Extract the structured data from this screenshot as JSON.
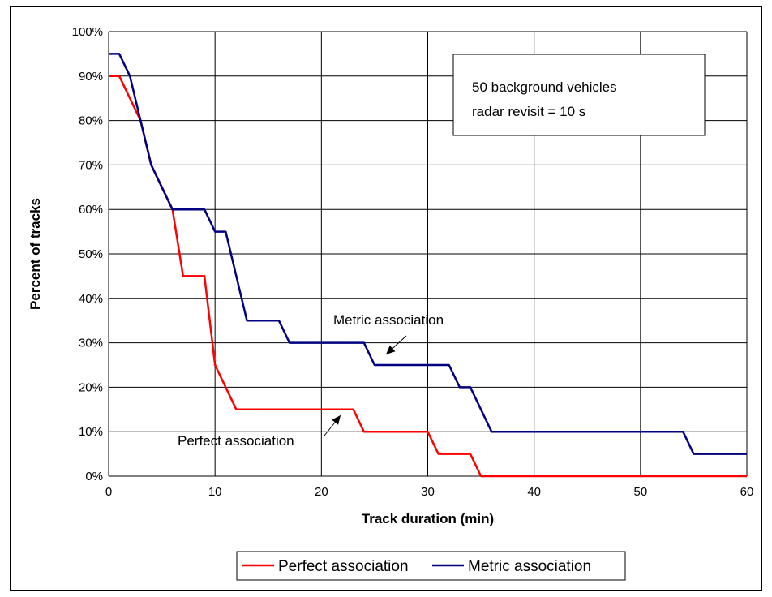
{
  "chart_data": {
    "type": "line",
    "title": "",
    "xlabel": "Track duration (min)",
    "ylabel": "Percent of tracks",
    "xlim": [
      0,
      60
    ],
    "ylim": [
      0,
      100
    ],
    "xticks": [
      0,
      10,
      20,
      30,
      40,
      50,
      60
    ],
    "yticks": [
      0,
      10,
      20,
      30,
      40,
      50,
      60,
      70,
      80,
      90,
      100
    ],
    "ytick_format": "percent",
    "grid": true,
    "legend_position": "bottom",
    "annotation_box": [
      "50 background vehicles",
      "radar revisit = 10 s"
    ],
    "arrow_labels": [
      "Metric association",
      "Perfect association"
    ],
    "series": [
      {
        "name": "Perfect association",
        "color": "#ff0000",
        "points": [
          [
            0,
            90
          ],
          [
            1,
            90
          ],
          [
            2,
            85
          ],
          [
            3,
            80
          ],
          [
            4,
            70
          ],
          [
            5,
            65
          ],
          [
            6,
            60
          ],
          [
            7,
            45
          ],
          [
            8,
            45
          ],
          [
            9,
            45
          ],
          [
            10,
            25
          ],
          [
            11,
            20
          ],
          [
            12,
            15
          ],
          [
            13,
            15
          ],
          [
            14,
            15
          ],
          [
            15,
            15
          ],
          [
            16,
            15
          ],
          [
            17,
            15
          ],
          [
            18,
            15
          ],
          [
            19,
            15
          ],
          [
            20,
            15
          ],
          [
            21,
            15
          ],
          [
            22,
            15
          ],
          [
            23,
            15
          ],
          [
            24,
            10
          ],
          [
            25,
            10
          ],
          [
            26,
            10
          ],
          [
            27,
            10
          ],
          [
            28,
            10
          ],
          [
            29,
            10
          ],
          [
            30,
            10
          ],
          [
            31,
            5
          ],
          [
            32,
            5
          ],
          [
            33,
            5
          ],
          [
            34,
            5
          ],
          [
            35,
            0
          ],
          [
            36,
            0
          ],
          [
            40,
            0
          ],
          [
            45,
            0
          ],
          [
            50,
            0
          ],
          [
            55,
            0
          ],
          [
            60,
            0
          ]
        ]
      },
      {
        "name": "Metric association",
        "color": "#000080",
        "points": [
          [
            0,
            95
          ],
          [
            1,
            95
          ],
          [
            2,
            90
          ],
          [
            3,
            80
          ],
          [
            4,
            70
          ],
          [
            5,
            65
          ],
          [
            6,
            60
          ],
          [
            7,
            60
          ],
          [
            8,
            60
          ],
          [
            9,
            60
          ],
          [
            10,
            55
          ],
          [
            11,
            55
          ],
          [
            12,
            45
          ],
          [
            13,
            35
          ],
          [
            14,
            35
          ],
          [
            15,
            35
          ],
          [
            16,
            35
          ],
          [
            17,
            30
          ],
          [
            18,
            30
          ],
          [
            19,
            30
          ],
          [
            20,
            30
          ],
          [
            21,
            30
          ],
          [
            22,
            30
          ],
          [
            23,
            30
          ],
          [
            24,
            30
          ],
          [
            25,
            25
          ],
          [
            26,
            25
          ],
          [
            27,
            25
          ],
          [
            28,
            25
          ],
          [
            29,
            25
          ],
          [
            30,
            25
          ],
          [
            31,
            25
          ],
          [
            32,
            25
          ],
          [
            33,
            20
          ],
          [
            34,
            20
          ],
          [
            35,
            15
          ],
          [
            36,
            10
          ],
          [
            37,
            10
          ],
          [
            40,
            10
          ],
          [
            45,
            10
          ],
          [
            50,
            10
          ],
          [
            53,
            10
          ],
          [
            54,
            10
          ],
          [
            55,
            5
          ],
          [
            56,
            5
          ],
          [
            60,
            5
          ]
        ]
      }
    ]
  }
}
